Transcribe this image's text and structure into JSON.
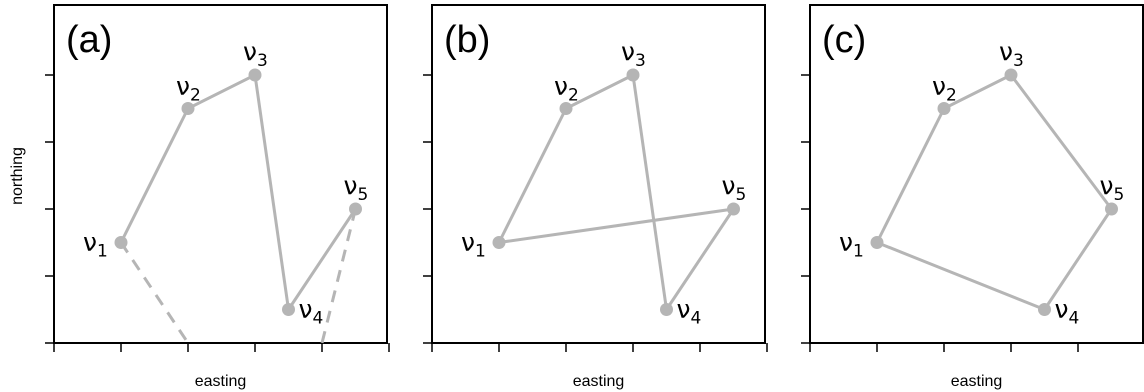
{
  "y_axis_label": "northing",
  "panels": [
    {
      "label": "(a)",
      "x_axis_label": "easting",
      "vertices": [
        {
          "name": "ν",
          "sub": "1",
          "easting": 1.0,
          "northing": 1.5
        },
        {
          "name": "ν",
          "sub": "2",
          "easting": 2.0,
          "northing": 3.5
        },
        {
          "name": "ν",
          "sub": "3",
          "easting": 3.0,
          "northing": 4.0
        },
        {
          "name": "ν",
          "sub": "4",
          "easting": 3.5,
          "northing": 0.5
        },
        {
          "name": "ν",
          "sub": "5",
          "easting": 4.5,
          "northing": 2.0
        }
      ],
      "edges": [
        [
          0,
          1
        ],
        [
          1,
          2
        ],
        [
          2,
          3
        ],
        [
          3,
          4
        ]
      ],
      "dashed_edges": [
        {
          "from": 0,
          "to": {
            "easting": 2.0,
            "northing": 0.0
          }
        },
        {
          "from": 4,
          "to": {
            "easting": 4.0,
            "northing": 0.0
          }
        }
      ]
    },
    {
      "label": "(b)",
      "x_axis_label": "easting",
      "vertices": [
        {
          "name": "ν",
          "sub": "1",
          "easting": 1.0,
          "northing": 1.5
        },
        {
          "name": "ν",
          "sub": "2",
          "easting": 2.0,
          "northing": 3.5
        },
        {
          "name": "ν",
          "sub": "3",
          "easting": 3.0,
          "northing": 4.0
        },
        {
          "name": "ν",
          "sub": "4",
          "easting": 3.5,
          "northing": 0.5
        },
        {
          "name": "ν",
          "sub": "5",
          "easting": 4.5,
          "northing": 2.0
        }
      ],
      "edges": [
        [
          0,
          1
        ],
        [
          1,
          2
        ],
        [
          2,
          3
        ],
        [
          3,
          4
        ],
        [
          4,
          0
        ]
      ],
      "dashed_edges": []
    },
    {
      "label": "(c)",
      "x_axis_label": "easting",
      "vertices": [
        {
          "name": "ν",
          "sub": "1",
          "easting": 1.0,
          "northing": 1.5
        },
        {
          "name": "ν",
          "sub": "2",
          "easting": 2.0,
          "northing": 3.5
        },
        {
          "name": "ν",
          "sub": "3",
          "easting": 3.0,
          "northing": 4.0
        },
        {
          "name": "ν",
          "sub": "4",
          "easting": 3.5,
          "northing": 0.5
        },
        {
          "name": "ν",
          "sub": "5",
          "easting": 4.5,
          "northing": 2.0
        }
      ],
      "edges": [
        [
          0,
          1
        ],
        [
          1,
          2
        ],
        [
          2,
          4
        ],
        [
          4,
          3
        ],
        [
          3,
          0
        ]
      ],
      "dashed_edges": []
    }
  ],
  "axes": {
    "easting_range": [
      0,
      5
    ],
    "northing_range": [
      0,
      5
    ],
    "x_ticks": [
      0,
      1,
      2,
      3,
      4,
      5
    ],
    "y_ticks": [
      0,
      1,
      2,
      3,
      4
    ],
    "tick_labels_shown": false
  }
}
